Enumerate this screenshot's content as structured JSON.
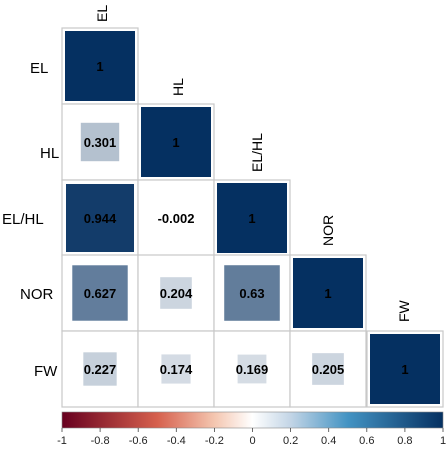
{
  "chart_data": {
    "type": "heatmap",
    "variables": [
      "EL",
      "HL",
      "EL/HL",
      "NOR",
      "FW"
    ],
    "row_labels": [
      "EL",
      "HL",
      "EL/HL",
      "NOR",
      "FW"
    ],
    "column_labels": [
      "EL",
      "HL",
      "EL/HL",
      "NOR",
      "FW"
    ],
    "matrix": [
      [
        "1",
        null,
        null,
        null,
        null
      ],
      [
        "0.301",
        "1",
        null,
        null,
        null
      ],
      [
        "0.944",
        "-0.002",
        "1",
        null,
        null
      ],
      [
        "0.627",
        "0.204",
        "0.63",
        "1",
        null
      ],
      [
        "0.227",
        "0.174",
        "0.169",
        "0.205",
        "1"
      ]
    ],
    "triangle": "lower",
    "cell_shape": "square sized by |r|",
    "colorbar": {
      "min": -1,
      "max": 1,
      "ticks": [
        "-1",
        "-0.8",
        "-0.6",
        "-0.4",
        "-0.2",
        "0",
        "0.2",
        "0.4",
        "0.6",
        "0.8",
        "1"
      ],
      "colors": [
        "#67001f",
        "#ffffff",
        "#053061"
      ],
      "orientation": "horizontal",
      "position": "bottom"
    },
    "grid": true
  }
}
